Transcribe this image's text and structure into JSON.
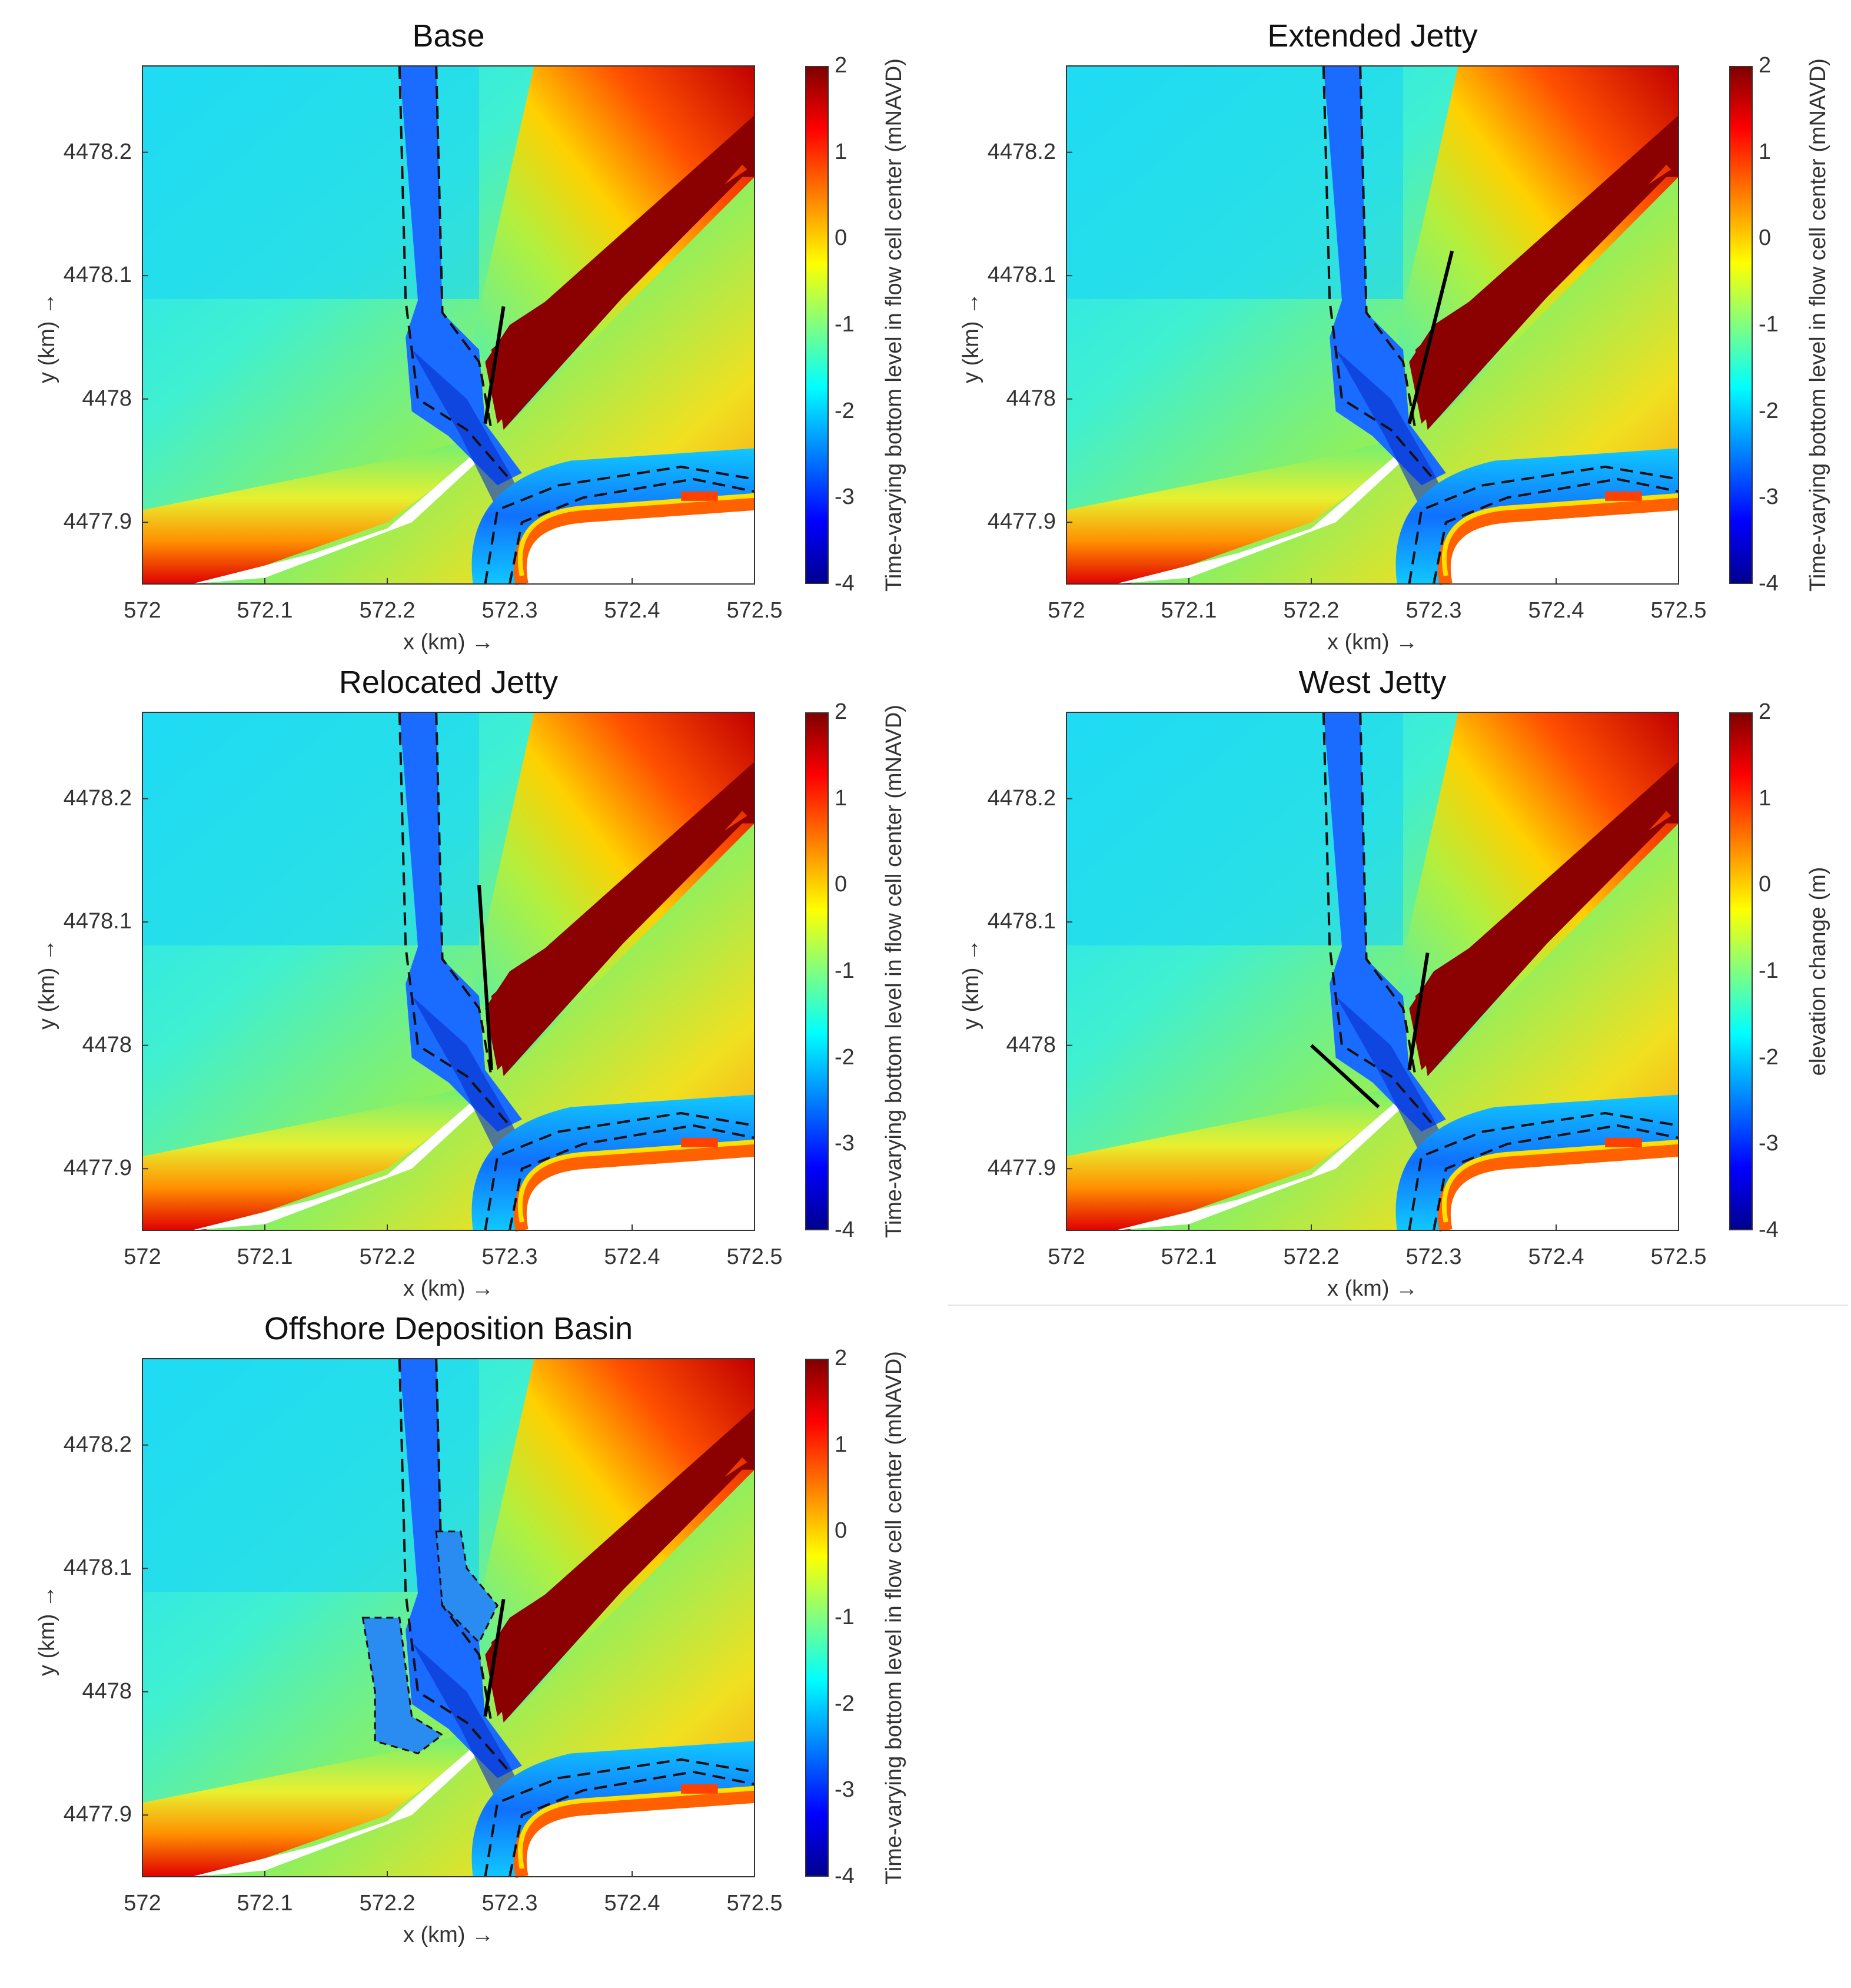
{
  "chart_data": [
    {
      "type": "heatmap",
      "title": "Base",
      "xlabel": "x (km) →",
      "ylabel": "y (km) →",
      "xticks": [
        "572",
        "572.1",
        "572.2",
        "572.3",
        "572.4",
        "572.5"
      ],
      "yticks": [
        "4477.9",
        "4478",
        "4478.1",
        "4478.2"
      ],
      "xlim": [
        572,
        572.5
      ],
      "ylim": [
        4477.85,
        4478.27
      ],
      "colorbar_label": "Time-varying bottom level in flow cell center (mNAVD)",
      "colorbar_ticks": [
        "2",
        "1",
        "0",
        "-1",
        "-2",
        "-3",
        "-4"
      ],
      "clim": [
        -4,
        2
      ],
      "structure": "jetty",
      "structure_lines": [
        [
          [
            572.28,
            4477.98
          ],
          [
            572.295,
            4478.075
          ]
        ]
      ]
    },
    {
      "type": "heatmap",
      "title": "Extended Jetty",
      "xlabel": "x (km) →",
      "ylabel": "y (km) →",
      "xticks": [
        "572",
        "572.1",
        "572.2",
        "572.3",
        "572.4",
        "572.5"
      ],
      "yticks": [
        "4477.9",
        "4478",
        "4478.1",
        "4478.2"
      ],
      "xlim": [
        572,
        572.5
      ],
      "ylim": [
        4477.85,
        4478.27
      ],
      "colorbar_label": "Time-varying bottom level in flow cell center (mNAVD)",
      "colorbar_ticks": [
        "2",
        "1",
        "0",
        "-1",
        "-2",
        "-3",
        "-4"
      ],
      "clim": [
        -4,
        2
      ],
      "structure": "jetty",
      "structure_lines": [
        [
          [
            572.28,
            4477.98
          ],
          [
            572.315,
            4478.12
          ]
        ]
      ]
    },
    {
      "type": "heatmap",
      "title": "Relocated Jetty",
      "xlabel": "x (km) →",
      "ylabel": "y (km) →",
      "xticks": [
        "572",
        "572.1",
        "572.2",
        "572.3",
        "572.4",
        "572.5"
      ],
      "yticks": [
        "4477.9",
        "4478",
        "4478.1",
        "4478.2"
      ],
      "xlim": [
        572,
        572.5
      ],
      "ylim": [
        4477.85,
        4478.27
      ],
      "colorbar_label": "Time-varying bottom level in flow cell center (mNAVD)",
      "colorbar_ticks": [
        "2",
        "1",
        "0",
        "-1",
        "-2",
        "-3",
        "-4"
      ],
      "clim": [
        -4,
        2
      ],
      "structure": "jetty",
      "structure_lines": [
        [
          [
            572.285,
            4477.98
          ],
          [
            572.275,
            4478.13
          ]
        ]
      ]
    },
    {
      "type": "heatmap",
      "title": "West Jetty",
      "xlabel": "x (km) →",
      "ylabel": "y (km) →",
      "xticks": [
        "572",
        "572.1",
        "572.2",
        "572.3",
        "572.4",
        "572.5"
      ],
      "yticks": [
        "4477.9",
        "4478",
        "4478.1",
        "4478.2"
      ],
      "xlim": [
        572,
        572.5
      ],
      "ylim": [
        4477.85,
        4478.27
      ],
      "colorbar_label": "elevation change (m)",
      "colorbar_ticks": [
        "2",
        "1",
        "0",
        "-1",
        "-2",
        "-3",
        "-4"
      ],
      "clim": [
        -4,
        2
      ],
      "structure": "jetty",
      "structure_lines": [
        [
          [
            572.28,
            4477.98
          ],
          [
            572.295,
            4478.075
          ]
        ],
        [
          [
            572.2,
            4478.0
          ],
          [
            572.255,
            4477.95
          ]
        ]
      ]
    },
    {
      "type": "heatmap",
      "title": "Offshore Deposition Basin",
      "xlabel": "x (km) →",
      "ylabel": "y (km) →",
      "xticks": [
        "572",
        "572.1",
        "572.2",
        "572.3",
        "572.4",
        "572.5"
      ],
      "yticks": [
        "4477.9",
        "4478",
        "4478.1",
        "4478.2"
      ],
      "xlim": [
        572,
        572.5
      ],
      "ylim": [
        4477.85,
        4478.27
      ],
      "colorbar_label": "Time-varying bottom level in flow cell center (mNAVD)",
      "colorbar_ticks": [
        "2",
        "1",
        "0",
        "-1",
        "-2",
        "-3",
        "-4"
      ],
      "clim": [
        -4,
        2
      ],
      "structure": "basin",
      "structure_lines": [
        [
          [
            572.28,
            4477.98
          ],
          [
            572.295,
            4478.075
          ]
        ]
      ]
    }
  ]
}
